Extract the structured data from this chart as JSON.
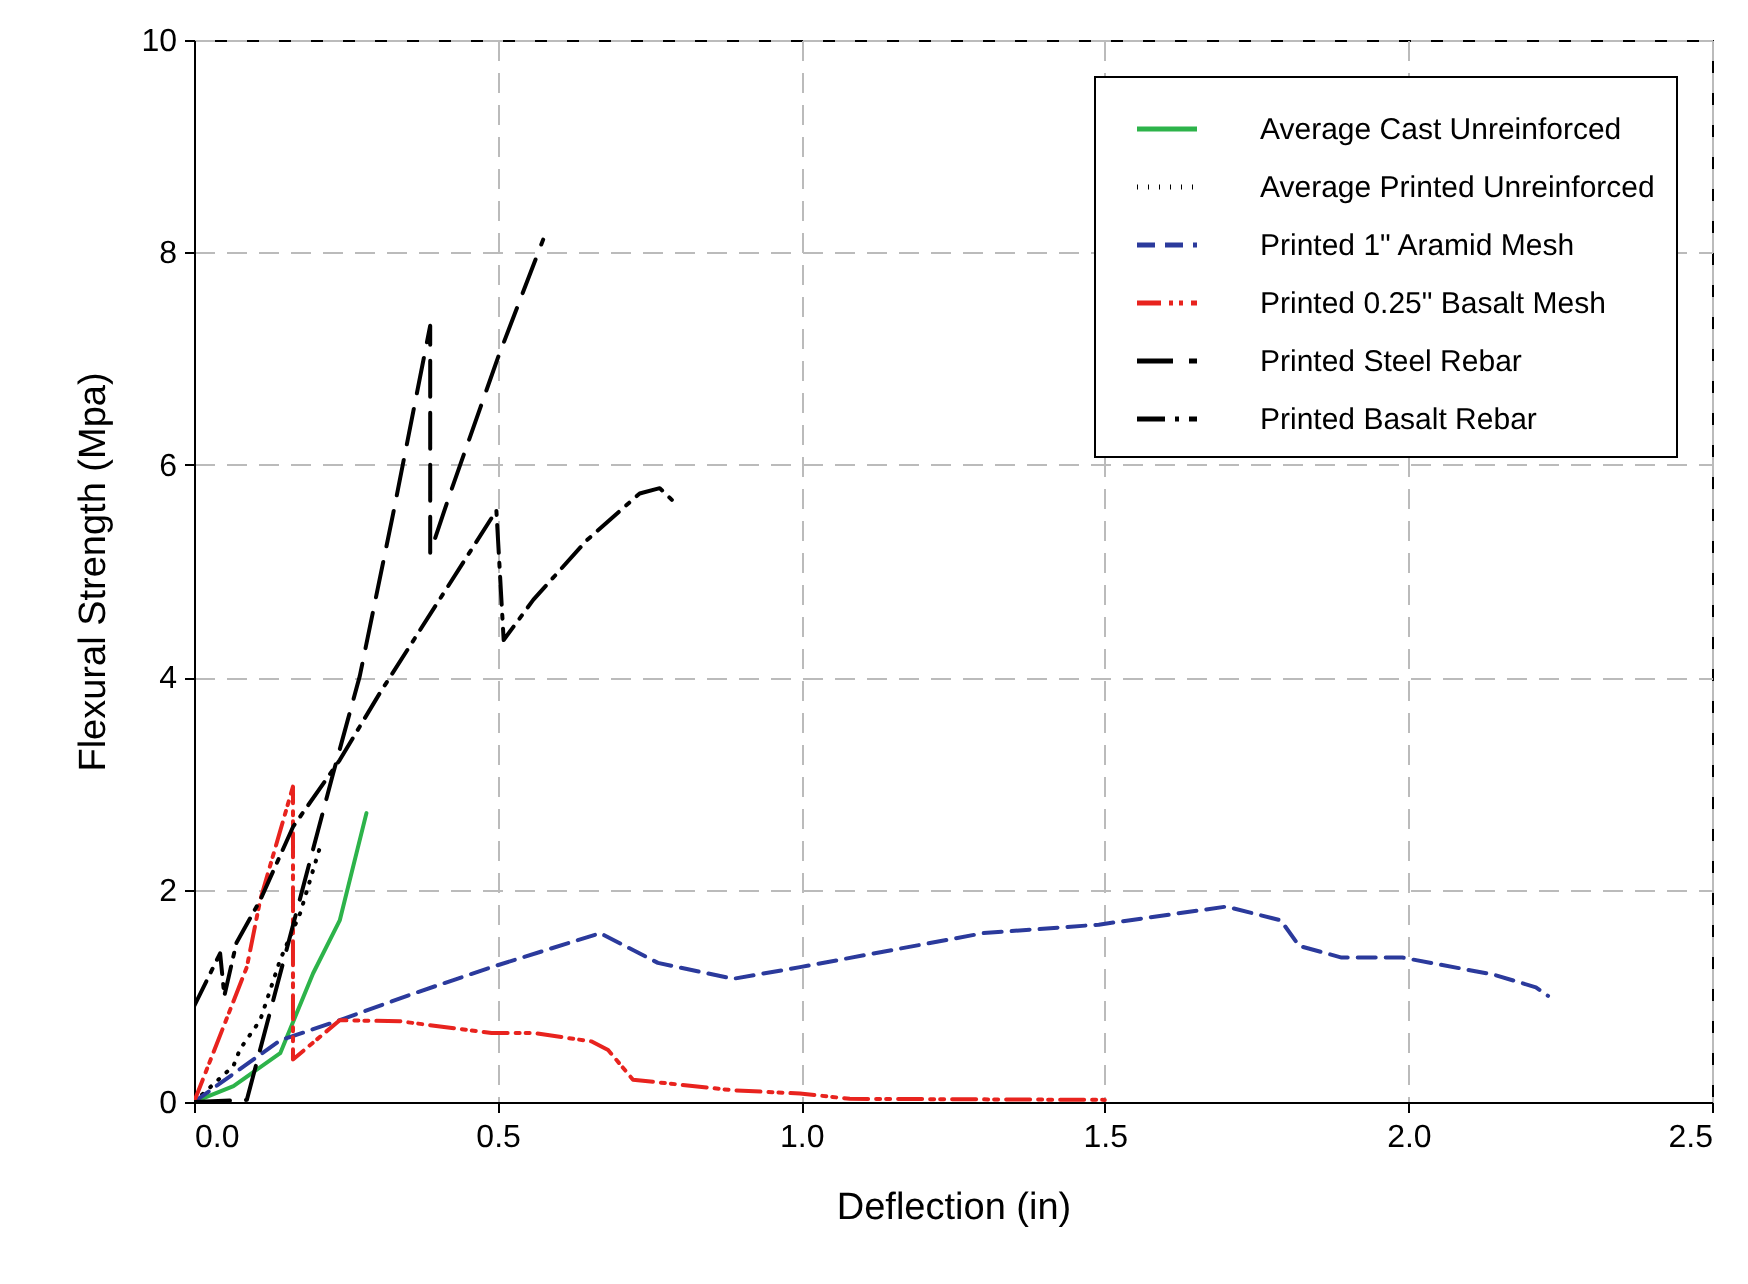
{
  "chart_data": {
    "type": "line",
    "xlabel": "Deflection (in)",
    "ylabel": "Flexural Strength (Mpa)",
    "xlim": [
      0,
      2.5
    ],
    "xticks": [
      {
        "value": 0,
        "label": "0.0"
      },
      {
        "value": 0.5,
        "label": "0.5"
      },
      {
        "value": 1,
        "label": "1.0"
      },
      {
        "value": 1.5,
        "label": "1.5"
      },
      {
        "value": 2,
        "label": "2.0"
      },
      {
        "value": 2.5,
        "label": "2.5"
      }
    ],
    "ylim": [
      0,
      10
    ],
    "yticks": [
      0,
      2,
      4,
      6,
      8,
      10
    ],
    "grid": true,
    "legend": "top right",
    "series": [
      {
        "name": "Average Cast Unreinforced",
        "color": "#2db34a",
        "line_style": "solid",
        "x": [
          0,
          0.065,
          0.142,
          0.196,
          0.24,
          0.284
        ],
        "values": [
          0,
          0.15,
          0.46,
          1.21,
          1.71,
          2.72
        ]
      },
      {
        "name": "Average Printed Unreinforced",
        "color": "#000000",
        "line_style": "dotted",
        "x": [
          0,
          0.065,
          0.076,
          0.109,
          0.142,
          0.175,
          0.208
        ],
        "values": [
          0,
          0.34,
          0.5,
          0.77,
          1.34,
          1.78,
          2.41
        ]
      },
      {
        "name": "Printed 1\" Aramid Mesh",
        "color": "#2b3a9c",
        "line_style": "dashed",
        "x": [
          0,
          0.142,
          0.24,
          0.361,
          0.49,
          0.669,
          0.764,
          0.888,
          0.998,
          1.3,
          1.49,
          1.7,
          1.79,
          1.82,
          1.89,
          1.99,
          2.14,
          2.21,
          2.23
        ],
        "values": [
          0,
          0.58,
          0.77,
          1.02,
          1.27,
          1.59,
          1.31,
          1.16,
          1.27,
          1.59,
          1.67,
          1.84,
          1.71,
          1.47,
          1.36,
          1.36,
          1.2,
          1.08,
          1.0
        ]
      },
      {
        "name": "Printed 0.25\" Basalt Mesh",
        "color": "#e8231e",
        "line_style": "dashdotdot",
        "x": [
          0,
          0.087,
          0.109,
          0.163,
          0.163,
          0.24,
          0.339,
          0.49,
          0.559,
          0.655,
          0.682,
          0.723,
          0.888,
          0.998,
          1.08,
          1.5
        ],
        "values": [
          0,
          1.27,
          1.9,
          2.97,
          0.4,
          0.77,
          0.76,
          0.65,
          0.65,
          0.57,
          0.49,
          0.21,
          0.11,
          0.08,
          0.03,
          0.02
        ]
      },
      {
        "name": "Printed Steel Rebar",
        "color": "#000000",
        "line_style": "longdash",
        "x": [
          0,
          0.087,
          0.229,
          0.273,
          0.328,
          0.389,
          0.389,
          0.42,
          0.5,
          0.575
        ],
        "values": [
          0,
          0.02,
          3.09,
          4.01,
          5.54,
          7.31,
          5.17,
          5.7,
          7.0,
          8.12
        ]
      },
      {
        "name": "Printed Basalt Rebar",
        "color": "#000000",
        "line_style": "dashdot",
        "x": [
          0,
          0.043,
          0.05,
          0.07,
          0.109,
          0.163,
          0.24,
          0.306,
          0.498,
          0.51,
          0.559,
          0.647,
          0.734,
          0.767,
          0.787
        ],
        "values": [
          0.9,
          1.4,
          1.0,
          1.5,
          1.9,
          2.59,
          3.22,
          3.85,
          5.57,
          4.35,
          4.73,
          5.29,
          5.73,
          5.78,
          5.67
        ]
      }
    ]
  }
}
